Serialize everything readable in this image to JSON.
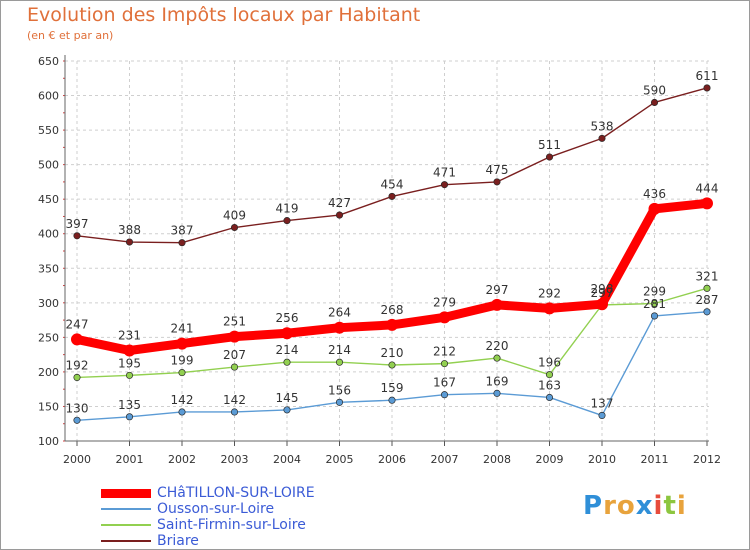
{
  "chart_data": {
    "type": "line",
    "title": "Evolution des Impôts locaux par Habitant",
    "subtitle": "(en € et par an)",
    "xlabel": "",
    "ylabel": "",
    "x": [
      "2000",
      "2001",
      "2002",
      "2003",
      "2004",
      "2005",
      "2006",
      "2007",
      "2008",
      "2009",
      "2010",
      "2011",
      "2012"
    ],
    "ylim": [
      100,
      650
    ],
    "yticks": [
      100,
      150,
      200,
      250,
      300,
      350,
      400,
      450,
      500,
      550,
      600,
      650
    ],
    "grid": true,
    "legend_position": "bottom-left",
    "series": [
      {
        "name": "CHâTILLON-SUR-LOIRE",
        "color": "#ff0000",
        "values": [
          247,
          231,
          241,
          251,
          256,
          264,
          268,
          279,
          297,
          292,
          298,
          436,
          444
        ],
        "labels": [
          "247",
          "231",
          "241",
          "251",
          "256",
          "264",
          "268",
          "279",
          "297",
          "292",
          "298",
          "436",
          "444"
        ]
      },
      {
        "name": "Ousson-sur-Loire",
        "color": "#5b9bd5",
        "values": [
          130,
          135,
          142,
          142,
          145,
          156,
          159,
          167,
          169,
          163,
          137,
          281,
          287
        ],
        "labels": [
          "130",
          "135",
          "142",
          "142",
          "145",
          "156",
          "159",
          "167",
          "169",
          "163",
          "137",
          "281",
          "287"
        ]
      },
      {
        "name": "Saint-Firmin-sur-Loire",
        "color": "#92d050",
        "values": [
          192,
          195,
          199,
          207,
          214,
          214,
          210,
          212,
          220,
          196,
          297,
          299,
          321
        ],
        "labels": [
          "192",
          "195",
          "199",
          "207",
          "214",
          "214",
          "210",
          "212",
          "220",
          "196",
          "297",
          "299",
          "321"
        ]
      },
      {
        "name": "Briare",
        "color": "#7a1f1f",
        "values": [
          397,
          388,
          387,
          409,
          419,
          427,
          454,
          471,
          475,
          511,
          538,
          590,
          611
        ],
        "labels": [
          "397",
          "388",
          "387",
          "409",
          "419",
          "427",
          "454",
          "471",
          "475",
          "511",
          "538",
          "590",
          "611"
        ]
      }
    ]
  },
  "branding": {
    "letters": [
      "P",
      "r",
      "o",
      "x",
      "i",
      "t",
      "i"
    ],
    "colors": [
      "#2f8fd8",
      "#e8a33c",
      "#e8a33c",
      "#2f8fd8",
      "#e74c3c",
      "#8dc63f",
      "#e8a33c"
    ]
  }
}
